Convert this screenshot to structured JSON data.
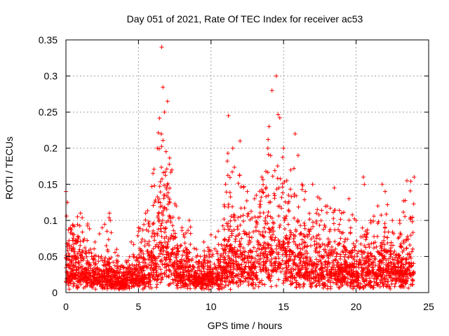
{
  "chart_data": {
    "type": "scatter",
    "title": "Day 051 of 2021, Rate Of TEC Index for receiver ac53",
    "xlabel": "GPS time / hours",
    "ylabel": "ROTI / TECUs",
    "xlim": [
      0,
      25
    ],
    "ylim": [
      0,
      0.35
    ],
    "xticks": [
      "0",
      "5",
      "10",
      "15",
      "20",
      "25"
    ],
    "yticks": [
      "0",
      "0.05",
      "0.1",
      "0.15",
      "0.2",
      "0.25",
      "0.3",
      "0.35"
    ],
    "grid": true,
    "marker": "+",
    "color": "#ff0000",
    "envelope": {
      "x": [
        0.0,
        0.1,
        0.3,
        0.8,
        1.0,
        1.5,
        2.0,
        2.5,
        3.0,
        3.5,
        4.0,
        4.5,
        5.0,
        5.5,
        6.0,
        6.3,
        6.6,
        6.8,
        7.0,
        7.3,
        7.6,
        8.0,
        8.5,
        9.0,
        9.5,
        10.0,
        10.5,
        11.0,
        11.2,
        11.5,
        12.0,
        12.5,
        13.0,
        13.5,
        14.0,
        14.2,
        14.5,
        15.0,
        15.5,
        15.8,
        16.0,
        16.5,
        17.0,
        17.5,
        18.0,
        18.5,
        19.0,
        19.5,
        20.0,
        20.5,
        21.0,
        21.5,
        21.8,
        22.0,
        22.5,
        23.0,
        23.5,
        24.0
      ],
      "upper": [
        0.14,
        0.125,
        0.09,
        0.105,
        0.11,
        0.095,
        0.07,
        0.09,
        0.11,
        0.06,
        0.035,
        0.07,
        0.09,
        0.11,
        0.165,
        0.2,
        0.34,
        0.25,
        0.265,
        0.17,
        0.12,
        0.09,
        0.1,
        0.06,
        0.07,
        0.08,
        0.085,
        0.15,
        0.245,
        0.2,
        0.21,
        0.14,
        0.13,
        0.16,
        0.23,
        0.28,
        0.3,
        0.2,
        0.17,
        0.22,
        0.19,
        0.14,
        0.15,
        0.13,
        0.12,
        0.145,
        0.11,
        0.13,
        0.1,
        0.16,
        0.1,
        0.12,
        0.15,
        0.14,
        0.1,
        0.1,
        0.155,
        0.16
      ],
      "typical": [
        0.04,
        0.06,
        0.05,
        0.05,
        0.05,
        0.04,
        0.03,
        0.03,
        0.03,
        0.02,
        0.02,
        0.03,
        0.03,
        0.04,
        0.06,
        0.09,
        0.12,
        0.1,
        0.1,
        0.08,
        0.05,
        0.04,
        0.04,
        0.03,
        0.03,
        0.035,
        0.04,
        0.06,
        0.08,
        0.07,
        0.07,
        0.06,
        0.06,
        0.07,
        0.09,
        0.1,
        0.1,
        0.08,
        0.07,
        0.08,
        0.07,
        0.06,
        0.06,
        0.055,
        0.05,
        0.055,
        0.05,
        0.05,
        0.04,
        0.06,
        0.05,
        0.05,
        0.06,
        0.06,
        0.05,
        0.05,
        0.05,
        0.05
      ]
    }
  }
}
